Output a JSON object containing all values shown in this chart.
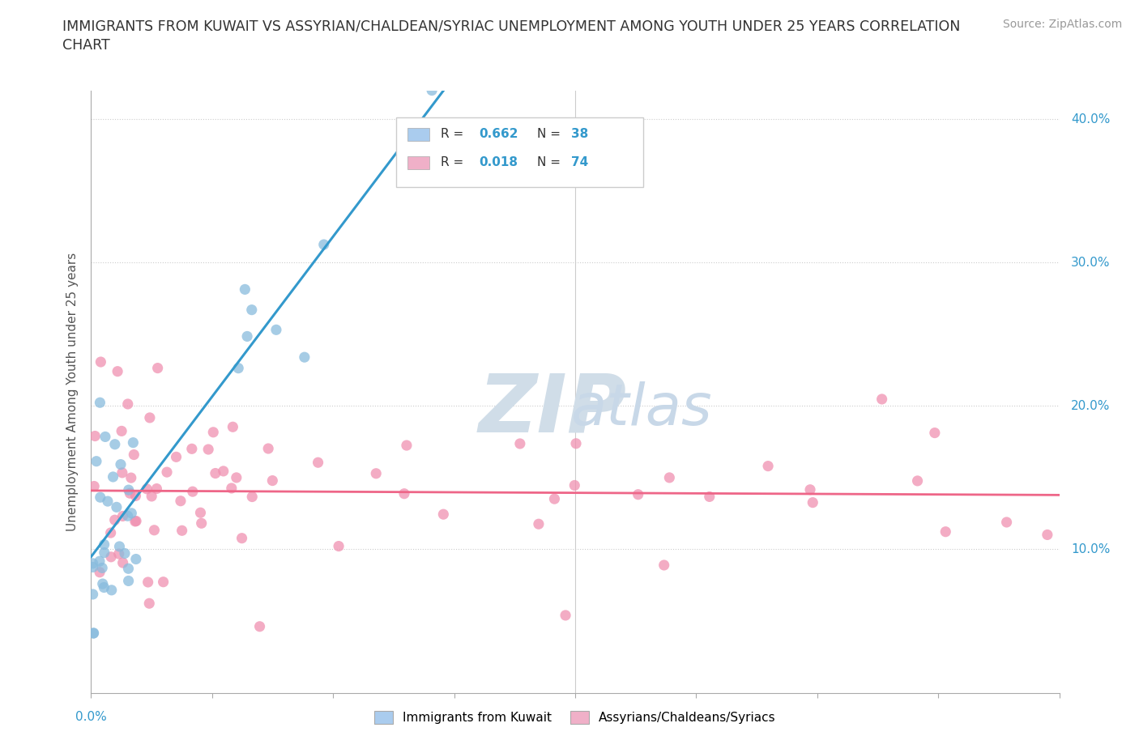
{
  "title": "IMMIGRANTS FROM KUWAIT VS ASSYRIAN/CHALDEAN/SYRIAC UNEMPLOYMENT AMONG YOUTH UNDER 25 YEARS CORRELATION\nCHART",
  "source_text": "Source: ZipAtlas.com",
  "ylabel": "Unemployment Among Youth under 25 years",
  "xlim": [
    0.0,
    0.2
  ],
  "ylim": [
    0.0,
    0.42
  ],
  "xticks": [
    0.0,
    0.025,
    0.05,
    0.075,
    0.1,
    0.125,
    0.15,
    0.175,
    0.2
  ],
  "yticks": [
    0.0,
    0.1,
    0.2,
    0.3,
    0.4
  ],
  "color_kuwait": "#aaccee",
  "color_assyrian": "#f0b0c8",
  "scatter_color_kuwait": "#88bbdd",
  "scatter_color_assyrian": "#f090b0",
  "line_color_kuwait": "#3399cc",
  "line_color_assyrian": "#ee6688",
  "background_color": "#ffffff",
  "grid_color": "#cccccc",
  "blue_label_color": "#3399cc",
  "axis_color": "#aaaaaa",
  "title_color": "#333333",
  "source_color": "#999999",
  "watermark_zip_color": "#d0dde8",
  "watermark_atlas_color": "#c8d8e8"
}
